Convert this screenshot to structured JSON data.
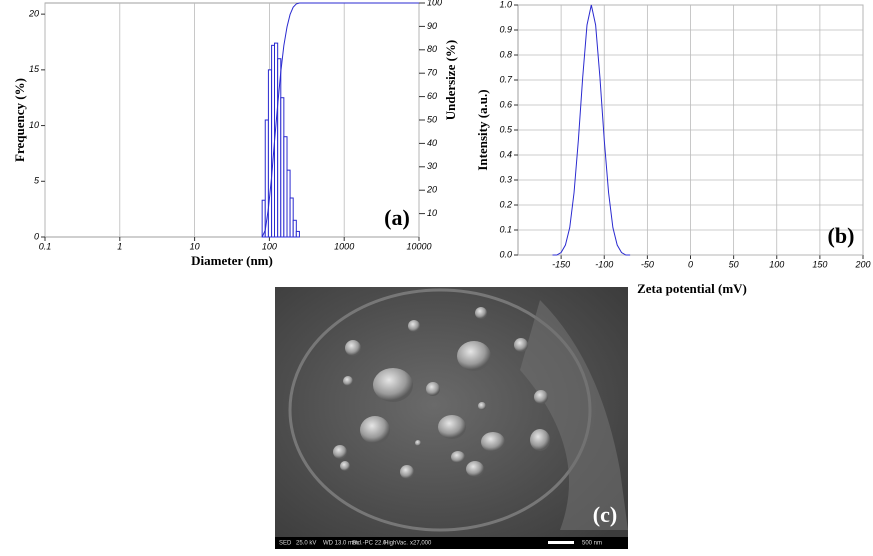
{
  "chart_data": [
    {
      "type": "histogram",
      "xscale": "log",
      "bins": [
        80,
        88,
        97,
        107,
        117,
        129,
        142,
        156,
        172,
        189,
        208,
        229,
        252
      ],
      "values": [
        3.3,
        10.5,
        15,
        17.2,
        17.4,
        16,
        12.5,
        9,
        6,
        3.5,
        1.5,
        0.5
      ],
      "color": "#2a2ad0",
      "line": {
        "x": [
          80,
          88,
          97,
          107,
          117,
          129,
          142,
          156,
          172,
          189,
          208,
          229,
          252,
          10000
        ],
        "values": [
          0,
          2.9,
          12.3,
          25.6,
          40.9,
          56.4,
          70.6,
          81.8,
          89.8,
          95.1,
          98.2,
          99.6,
          100,
          100
        ],
        "axis": "y2",
        "color": "#2a2ad0"
      },
      "xlim": [
        0.1,
        10000
      ],
      "xticks": [
        0.1,
        1,
        10,
        100,
        1000,
        10000
      ],
      "ylim": [
        0,
        21
      ],
      "yticks": [
        0,
        5,
        10,
        15,
        20
      ],
      "y2lim": [
        0,
        100
      ],
      "y2ticks": [
        10,
        20,
        30,
        40,
        50,
        60,
        70,
        80,
        90,
        100
      ],
      "xlabel": "Diameter (nm)",
      "ylabel": "Frequency (%)",
      "y2label": "Undersize (%)",
      "annotation": "(a)",
      "grid": "x"
    },
    {
      "type": "line",
      "x": [
        -160,
        -155,
        -150,
        -145,
        -140,
        -135,
        -130,
        -125,
        -120,
        -115,
        -110,
        -105,
        -100,
        -95,
        -90,
        -85,
        -80,
        -75,
        -70
      ],
      "values": [
        0.0,
        0.0,
        0.01,
        0.04,
        0.11,
        0.25,
        0.46,
        0.71,
        0.92,
        1.0,
        0.92,
        0.71,
        0.46,
        0.25,
        0.11,
        0.04,
        0.01,
        0.0,
        0.0
      ],
      "color": "#2a2ad0",
      "xlim": [
        -200,
        200
      ],
      "xticks": [
        -150,
        -100,
        -50,
        0,
        50,
        100,
        150,
        200
      ],
      "ylim": [
        0,
        1
      ],
      "yticks": [
        {
          "value": 0,
          "label": "0.0"
        },
        0.1,
        0.2,
        0.3,
        0.4,
        0.5,
        0.6,
        0.7,
        0.8,
        0.9,
        {
          "value": 1,
          "label": "1.0"
        }
      ],
      "xlabel": "Zeta potential (mV)",
      "ylabel": "Intensity (a.u.)",
      "annotation": "(b)",
      "grid": "both"
    }
  ],
  "sem_image": {
    "label": "(c)",
    "info_bar": [
      "SED",
      "25.0 kV",
      "WD 13.0 mm",
      "Std.-PC 22.0",
      "HighVac.",
      "x27,000",
      "500 nm"
    ]
  }
}
